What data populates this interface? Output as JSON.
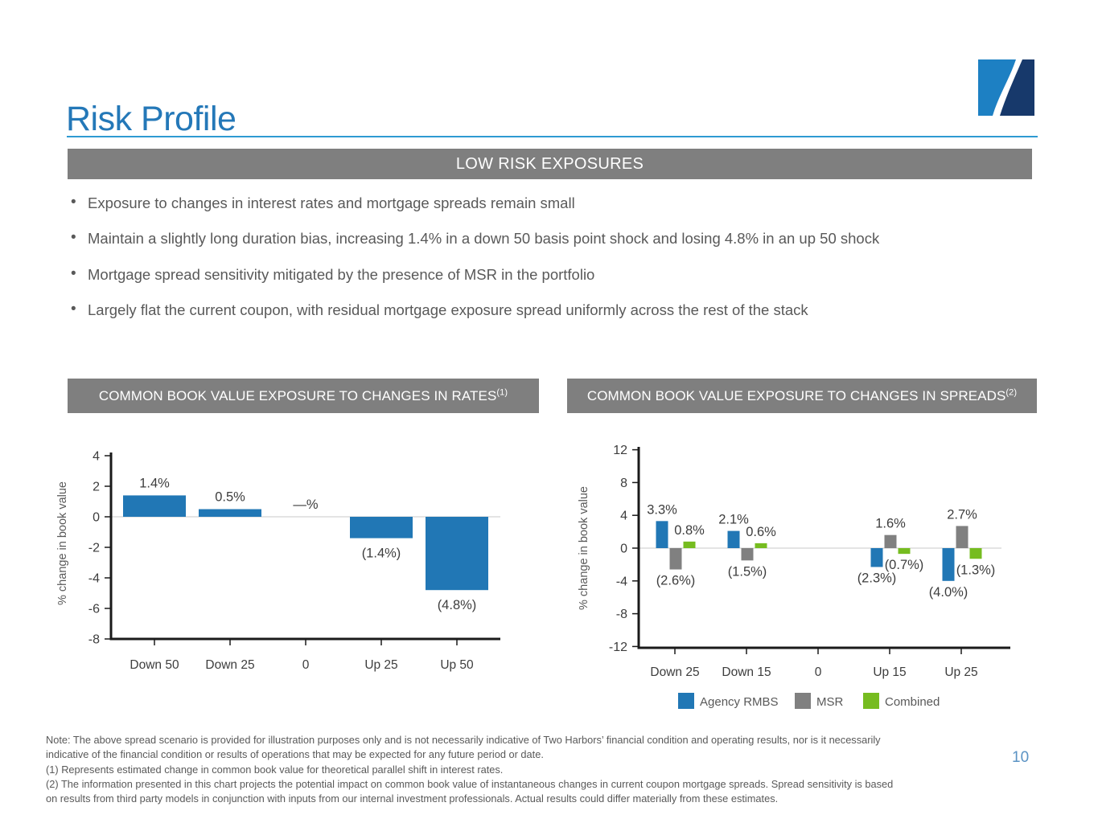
{
  "title": "Risk Profile",
  "banner": "LOW RISK EXPOSURES",
  "bullets": [
    "Exposure to changes in interest rates and mortgage spreads remain small",
    "Maintain a slightly long duration bias, increasing 1.4% in a down 50 basis point shock and losing 4.8% in an up 50 shock",
    "Mortgage spread sensitivity mitigated by the presence of MSR in the portfolio",
    "Largely flat the current coupon, with residual mortgage exposure spread uniformly across the rest of the stack"
  ],
  "section_headers": {
    "rates": {
      "text": "COMMON BOOK VALUE EXPOSURE TO CHANGES IN RATES",
      "sup": "(1)"
    },
    "spreads": {
      "text": "COMMON BOOK VALUE EXPOSURE TO CHANGES IN SPREADS",
      "sup": "(2)"
    }
  },
  "chart_data": [
    {
      "type": "bar",
      "title": "COMMON BOOK VALUE EXPOSURE TO CHANGES IN RATES (1)",
      "categories": [
        "Down 50",
        "Down 25",
        "0",
        "Up 25",
        "Up 50"
      ],
      "values": [
        1.4,
        0.5,
        0,
        -1.4,
        -4.8
      ],
      "labels": [
        "1.4%",
        "0.5%",
        "—%",
        "(1.4%)",
        "(4.8%)"
      ],
      "xlabel": "",
      "ylabel": "% change in book value",
      "ylim": [
        -8,
        4
      ],
      "yticks": [
        4,
        2,
        0,
        -2,
        -4,
        -6,
        -8
      ],
      "grid": false,
      "bar_color": "#2177b5"
    },
    {
      "type": "bar",
      "title": "COMMON BOOK VALUE EXPOSURE TO CHANGES IN SPREADS (2)",
      "categories": [
        "Down 25",
        "Down 15",
        "0",
        "Up 15",
        "Up 25"
      ],
      "series": [
        {
          "name": "Agency RMBS",
          "color": "#2177b5",
          "values": [
            3.3,
            2.1,
            0,
            -2.3,
            -4.0
          ],
          "labels": [
            "3.3%",
            "2.1%",
            "",
            "(2.3%)",
            "(4.0%)"
          ]
        },
        {
          "name": "MSR",
          "color": "#808080",
          "values": [
            -2.6,
            -1.5,
            0,
            1.6,
            2.7
          ],
          "labels": [
            "(2.6%)",
            "(1.5%)",
            "",
            "1.6%",
            "2.7%"
          ]
        },
        {
          "name": "Combined",
          "color": "#76bc20",
          "values": [
            0.8,
            0.6,
            0,
            -0.7,
            -1.3
          ],
          "labels": [
            "0.8%",
            "0.6%",
            "",
            "(0.7%)",
            "(1.3%)"
          ]
        }
      ],
      "xlabel": "",
      "ylabel": "% change in book value",
      "ylim": [
        -12,
        12
      ],
      "yticks": [
        12,
        8,
        4,
        0,
        -4,
        -8,
        -12
      ],
      "grid": false,
      "legend_position": "bottom"
    }
  ],
  "footnotes": [
    "Note: The above spread scenario is provided for illustration purposes only and is not necessarily indicative of Two Harbors’ financial condition and operating results, nor is it necessarily",
    "indicative of the financial condition or results of operations that may be expected for any future period or date.",
    "(1)  Represents estimated change in common book value for theoretical parallel shift in interest rates.",
    "(2) The information presented in this chart projects the potential impact on common book value of instantaneous changes in current coupon mortgage spreads. Spread sensitivity is based",
    "on results from third party models in conjunction with inputs from our internal investment professionals. Actual results could differ materially from these estimates."
  ],
  "page_number": "10",
  "colors": {
    "title_blue": "#2478b8",
    "rule_blue": "#2e9ad2",
    "banner_gray": "#7f7f7f",
    "body_text_gray": "#595959",
    "bar_blue": "#2177b5",
    "bar_gray": "#808080",
    "bar_green": "#76bc20",
    "axis_black": "#1a1a1a",
    "zero_line_gray": "#c8c8c8",
    "page_number_blue": "#5b93c4",
    "logo_light_blue": "#1d80c3",
    "logo_navy": "#17396b"
  }
}
